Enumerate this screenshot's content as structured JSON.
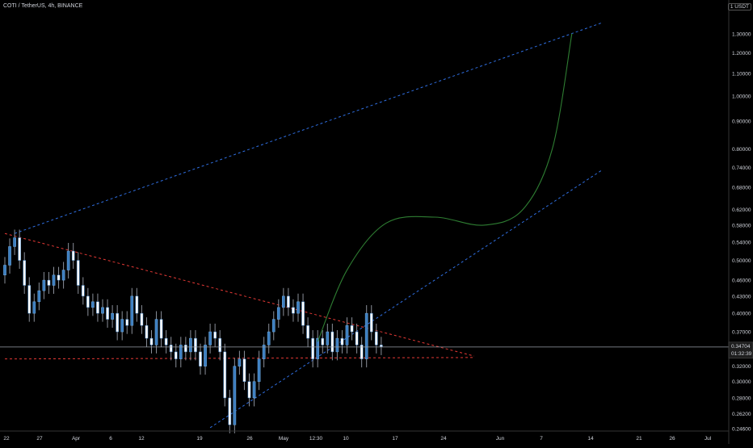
{
  "header": {
    "symbol_line": "COTI / TetherUS, 4h, BINANCE",
    "currency": "1 USDT"
  },
  "colors": {
    "background": "#000000",
    "candle_up": "#6fa8dc",
    "candle_down": "#ffffff",
    "candle_body": "#3d7fc1",
    "wick": "#8a8f99",
    "blue_dashed": "#2f6ee0",
    "red_dashed": "#e53935",
    "projection_curve": "#2e7d32",
    "price_line": "#9aa0aa",
    "axis_text": "#d1d4dc",
    "price_tag_bg": "#1e1e1e",
    "axis_border": "#333333"
  },
  "chart_data": {
    "type": "candlestick",
    "title": "COTI / TetherUS, 4h, BINANCE",
    "scale": "log",
    "ylim": [
      0.246,
      1.4
    ],
    "y_ticks": [
      "1.30000",
      "1.20000",
      "1.10000",
      "1.00000",
      "0.90000",
      "0.80000",
      "0.74000",
      "0.68000",
      "0.62000",
      "0.58000",
      "0.54000",
      "0.50000",
      "0.46000",
      "0.43000",
      "0.40000",
      "0.37000",
      "0.34000",
      "0.32000",
      "0.30000",
      "0.28000",
      "0.26200",
      "0.24600"
    ],
    "x_ticks": [
      "22",
      "27",
      "Apr",
      "6",
      "12",
      "19",
      "26",
      "May",
      "12:30",
      "10",
      "17",
      "24",
      "Jun",
      "7",
      "14",
      "21",
      "26",
      "Jul"
    ],
    "last_price": "0.34704",
    "countdown": "01:32:39",
    "series": [
      {
        "name": "price",
        "close": [
          0.49,
          0.53,
          0.55,
          0.5,
          0.45,
          0.4,
          0.42,
          0.44,
          0.46,
          0.45,
          0.47,
          0.46,
          0.48,
          0.52,
          0.5,
          0.45,
          0.43,
          0.41,
          0.42,
          0.4,
          0.41,
          0.39,
          0.4,
          0.37,
          0.39,
          0.38,
          0.43,
          0.4,
          0.38,
          0.36,
          0.35,
          0.39,
          0.36,
          0.35,
          0.34,
          0.33,
          0.35,
          0.34,
          0.36,
          0.34,
          0.32,
          0.35,
          0.37,
          0.36,
          0.34,
          0.28,
          0.25,
          0.32,
          0.33,
          0.3,
          0.28,
          0.3,
          0.33,
          0.35,
          0.37,
          0.39,
          0.41,
          0.43,
          0.41,
          0.4,
          0.42,
          0.38,
          0.36,
          0.33,
          0.36,
          0.35,
          0.37,
          0.34,
          0.36,
          0.35,
          0.38,
          0.37,
          0.35,
          0.33,
          0.4,
          0.37,
          0.35,
          0.3475
        ]
      }
    ],
    "trendlines": [
      {
        "label": "upper-channel",
        "style": "dashed-blue",
        "from": [
          2,
          0.56
        ],
        "to": [
          122,
          1.36
        ]
      },
      {
        "label": "lower-channel",
        "style": "dashed-blue",
        "from": [
          42,
          0.247
        ],
        "to": [
          122,
          0.73
        ]
      },
      {
        "label": "descending-resistance",
        "style": "dashed-red",
        "from": [
          0,
          0.56
        ],
        "to": [
          96,
          0.334
        ]
      },
      {
        "label": "horizontal-support",
        "style": "dashed-red",
        "from": [
          0,
          0.33
        ],
        "to": [
          96,
          0.332
        ]
      }
    ],
    "projection": {
      "style": "solid-green",
      "points": [
        [
          64,
          0.355
        ],
        [
          70,
          0.48
        ],
        [
          78,
          0.585
        ],
        [
          88,
          0.6
        ],
        [
          98,
          0.58
        ],
        [
          106,
          0.62
        ],
        [
          112,
          0.8
        ],
        [
          116,
          1.3
        ]
      ]
    }
  }
}
